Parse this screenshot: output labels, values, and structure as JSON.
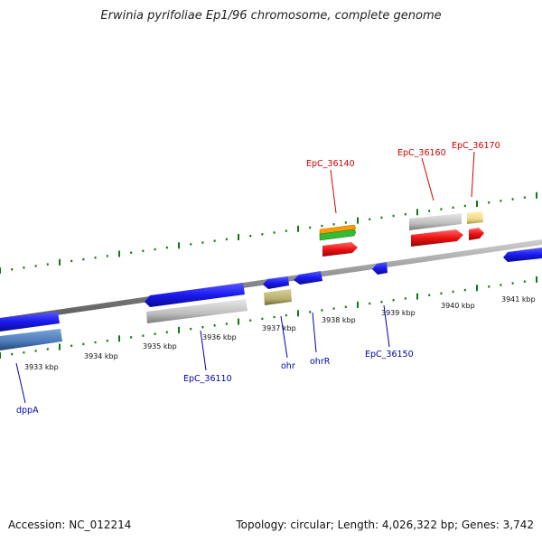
{
  "title": "Erwinia pyrifoliae Ep1/96 chromosome, complete genome",
  "footer": {
    "accession": "Accession: NC_012214",
    "summary": "Topology: circular; Length: 4,026,322 bp; Genes: 3,742"
  },
  "ticks": [
    "3933 kbp",
    "3934 kbp",
    "3935 kbp",
    "3936 kbp",
    "3937 kbp",
    "3938 kbp",
    "3939 kbp",
    "3940 kbp",
    "3941 kbp"
  ],
  "labels_top": [
    "EpC_36140",
    "EpC_36160",
    "EpC_36170"
  ],
  "labels_bottom": [
    "dppA",
    "EpC_36110",
    "ohr",
    "ohrR",
    "EpC_36150"
  ],
  "colors": {
    "backbone": "#888888",
    "gene_blue": "#1a1aee",
    "gene_red": "#ee1111",
    "gene_gray": "#bbbbbb",
    "gene_steel": "#4a7ab8",
    "gene_olive": "#b8b070",
    "gene_orange": "#ff9900",
    "gene_green": "#33bb33",
    "gene_yellow": "#eedd88",
    "tick_green": "#117711",
    "label_top": "#cc0000",
    "label_bottom": "#0000aa"
  }
}
